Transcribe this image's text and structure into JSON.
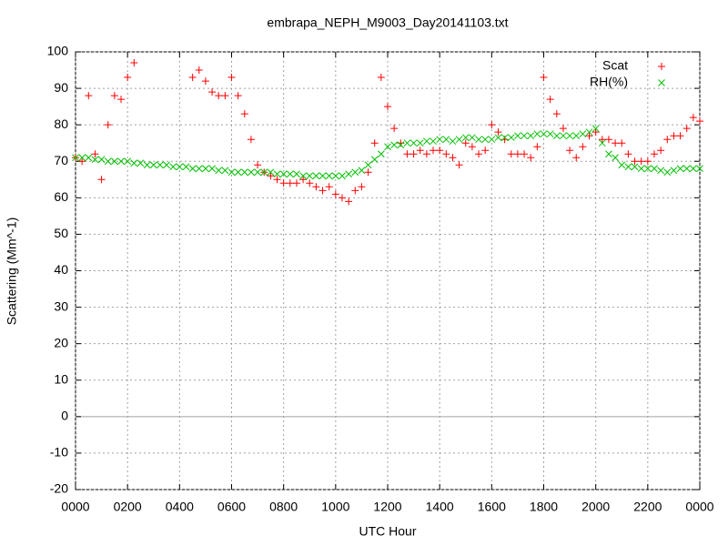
{
  "chart_data": {
    "type": "scatter",
    "title": "embrapa_NEPH_M9003_Day20141103.txt",
    "x_label": "UTC Hour",
    "y_label": "Scattering (Mm^-1)",
    "xlim": [
      0,
      24
    ],
    "ylim": [
      -20,
      100
    ],
    "xticks": [
      {
        "value": 0,
        "label": "0000"
      },
      {
        "value": 2,
        "label": "0200"
      },
      {
        "value": 4,
        "label": "0400"
      },
      {
        "value": 6,
        "label": "0600"
      },
      {
        "value": 8,
        "label": "0800"
      },
      {
        "value": 10,
        "label": "1000"
      },
      {
        "value": 12,
        "label": "1200"
      },
      {
        "value": 14,
        "label": "1400"
      },
      {
        "value": 16,
        "label": "1600"
      },
      {
        "value": 18,
        "label": "1800"
      },
      {
        "value": 20,
        "label": "2000"
      },
      {
        "value": 22,
        "label": "2200"
      },
      {
        "value": 24,
        "label": "0000"
      }
    ],
    "yticks": [
      -20,
      -10,
      0,
      10,
      20,
      30,
      40,
      50,
      60,
      70,
      80,
      90,
      100
    ],
    "grid": true,
    "legend": "top-right",
    "x": [
      0,
      0.25,
      0.5,
      0.75,
      1,
      1.25,
      1.5,
      1.75,
      2,
      2.25,
      2.5,
      2.75,
      3,
      3.25,
      3.5,
      3.75,
      4,
      4.25,
      4.5,
      4.75,
      5,
      5.25,
      5.5,
      5.75,
      6,
      6.25,
      6.5,
      6.75,
      7,
      7.25,
      7.5,
      7.75,
      8,
      8.25,
      8.5,
      8.75,
      9,
      9.25,
      9.5,
      9.75,
      10,
      10.25,
      10.5,
      10.75,
      11,
      11.25,
      11.5,
      11.75,
      12,
      12.25,
      12.5,
      12.75,
      13,
      13.25,
      13.5,
      13.75,
      14,
      14.25,
      14.5,
      14.75,
      15,
      15.25,
      15.5,
      15.75,
      16,
      16.25,
      16.5,
      16.75,
      17,
      17.25,
      17.5,
      17.75,
      18,
      18.25,
      18.5,
      18.75,
      19,
      19.25,
      19.5,
      19.75,
      20,
      20.25,
      20.5,
      20.75,
      21,
      21.25,
      21.5,
      21.75,
      22,
      22.25,
      22.5,
      22.75,
      23,
      23.25,
      23.5,
      23.75,
      24
    ],
    "series": [
      {
        "name": "Scat",
        "color": "#ff0000",
        "marker": "plus",
        "values": [
          71,
          70,
          88,
          72,
          65,
          80,
          88,
          87,
          93,
          97,
          null,
          null,
          null,
          null,
          null,
          null,
          null,
          null,
          93,
          95,
          92,
          89,
          88,
          88,
          93,
          88,
          83,
          76,
          69,
          67,
          66,
          65,
          64,
          64,
          64,
          65,
          64,
          63,
          62,
          63,
          61,
          60,
          59,
          62,
          63,
          67,
          75,
          93,
          85,
          79,
          75,
          72,
          72,
          73,
          72,
          73,
          73,
          72,
          71,
          69,
          75,
          74,
          72,
          73,
          80,
          78,
          76,
          72,
          72,
          72,
          71,
          74,
          93,
          87,
          83,
          79,
          73,
          71,
          74,
          77,
          78,
          76,
          76,
          75,
          75,
          72,
          70,
          70,
          70,
          72,
          73,
          76,
          77,
          77,
          79,
          82,
          81
        ]
      },
      {
        "name": "RH(%)",
        "color": "#00c000",
        "marker": "cross",
        "values": [
          71,
          71,
          71,
          70.5,
          70.5,
          70,
          70,
          70,
          70,
          69.5,
          69.5,
          69,
          69,
          69,
          69,
          68.5,
          68.5,
          68.5,
          68,
          68,
          68,
          68,
          67.5,
          67.5,
          67,
          67,
          67,
          67,
          67,
          67,
          67,
          66.5,
          66.5,
          66.5,
          66.5,
          66,
          66,
          66,
          66,
          66,
          66,
          66,
          66.5,
          67,
          67.5,
          69,
          70.5,
          72,
          74,
          74.5,
          74.5,
          75,
          75,
          75,
          75.5,
          75.5,
          76,
          76,
          75.5,
          76,
          76.5,
          76.5,
          76,
          76,
          76,
          76.5,
          76.5,
          76.5,
          77,
          77,
          77,
          77.5,
          77.5,
          77.5,
          77,
          77,
          77,
          77,
          77.5,
          78,
          79,
          75,
          72,
          71,
          69,
          68.5,
          68.5,
          68,
          68,
          68,
          67.5,
          67,
          67.5,
          68,
          68,
          68,
          68
        ]
      }
    ]
  }
}
